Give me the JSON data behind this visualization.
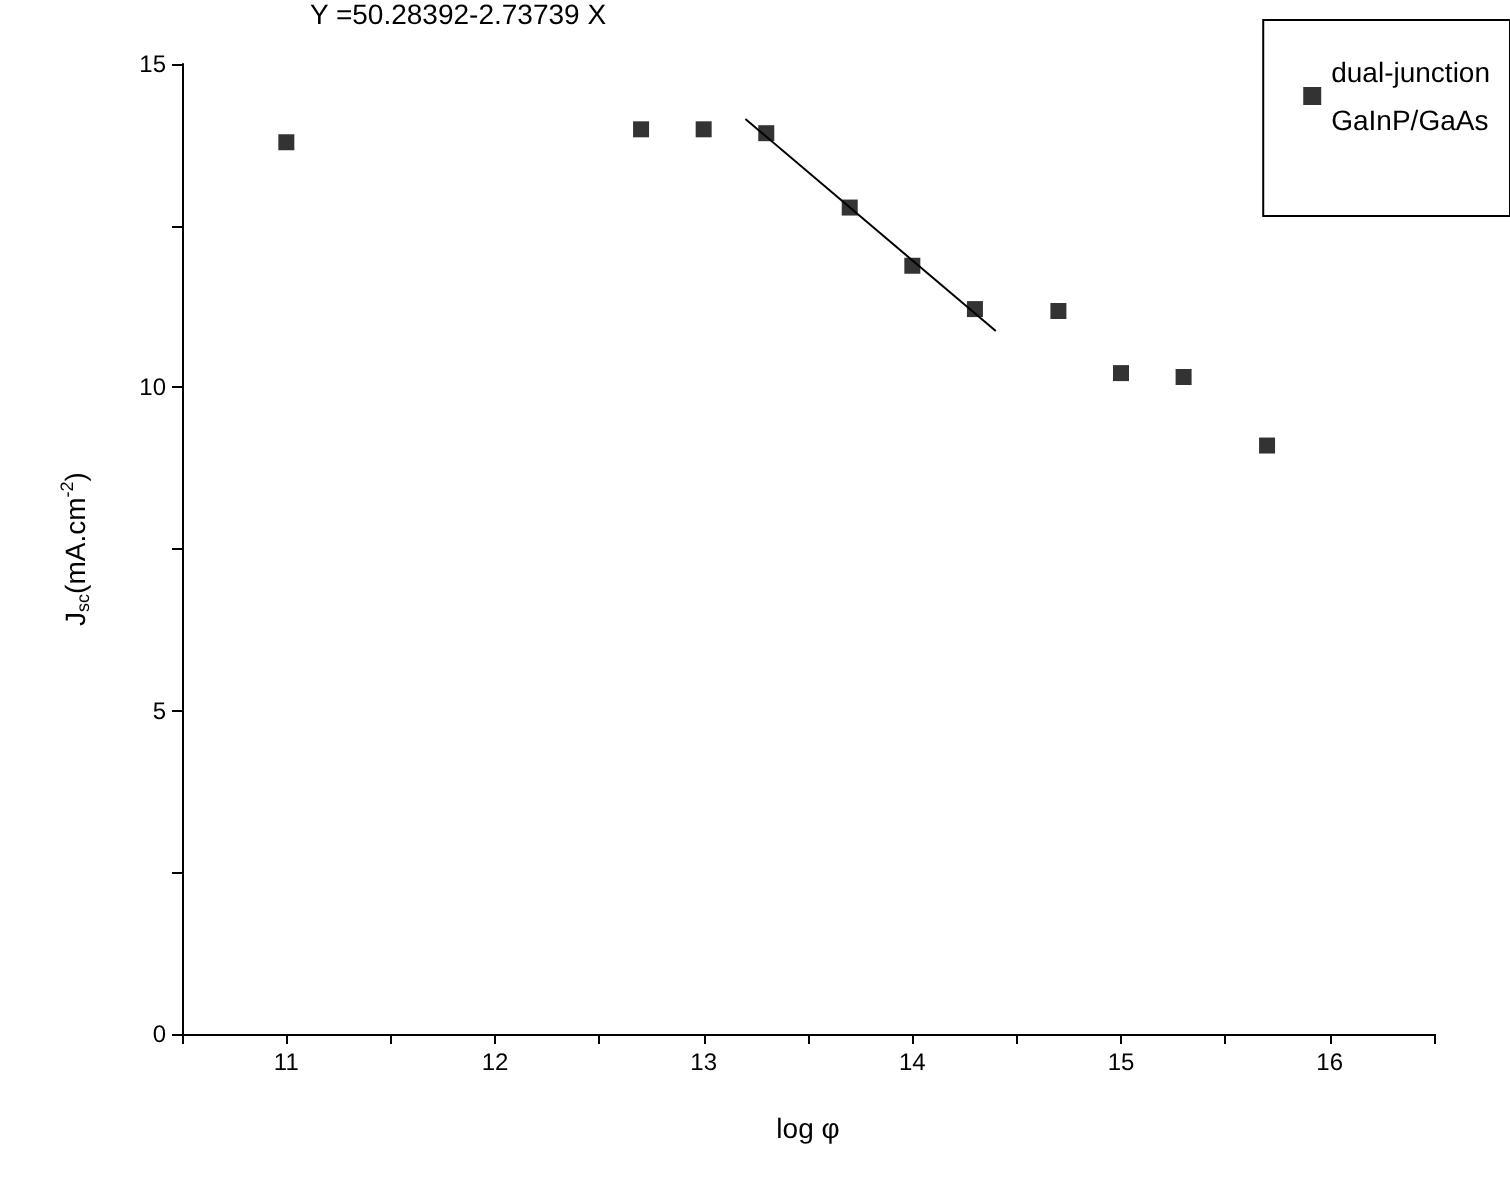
{
  "chart_data": {
    "type": "scatter",
    "xlabel": "log φ",
    "ylabel": "J$_{sc}$(mA.cm$^{-2}$)",
    "annotations": [
      "Y =50.28392-2.73739 X"
    ],
    "xlim": [
      10.5,
      16.5
    ],
    "xticks": [
      {
        "value": 10.5,
        "label": null
      },
      11,
      {
        "value": 11.5,
        "label": null
      },
      12,
      {
        "value": 12.5,
        "label": null
      },
      13,
      {
        "value": 13.5,
        "label": null
      },
      14,
      {
        "value": 14.5,
        "label": null
      },
      15,
      {
        "value": 15.5,
        "label": null
      },
      16,
      {
        "value": 16.5,
        "label": null
      }
    ],
    "ylim": [
      0,
      15
    ],
    "yticks": [
      0,
      {
        "value": 2.5,
        "label": null
      },
      5,
      {
        "value": 7.5,
        "label": null
      },
      10,
      {
        "value": 12.5,
        "label": null
      },
      15
    ],
    "grid": false,
    "legend": "top right",
    "series": [
      {
        "name": "dual-junction GaInP/GaAs",
        "color": "#000000",
        "marker": "square",
        "x": [
          11,
          12.7,
          13,
          13.3,
          13.7,
          14,
          14.3,
          14.7,
          15,
          15.3,
          15.7
        ],
        "values": [
          13.79,
          13.99,
          13.99,
          13.93,
          12.78,
          11.88,
          11.21,
          11.18,
          10.22,
          10.16,
          9.1
        ]
      },
      {
        "type": "line",
        "color": "#000000",
        "line_style": "solid",
        "marker": "none",
        "x": [
          13.2,
          14.4
        ],
        "values": [
          14.15,
          10.87
        ]
      }
    ]
  }
}
